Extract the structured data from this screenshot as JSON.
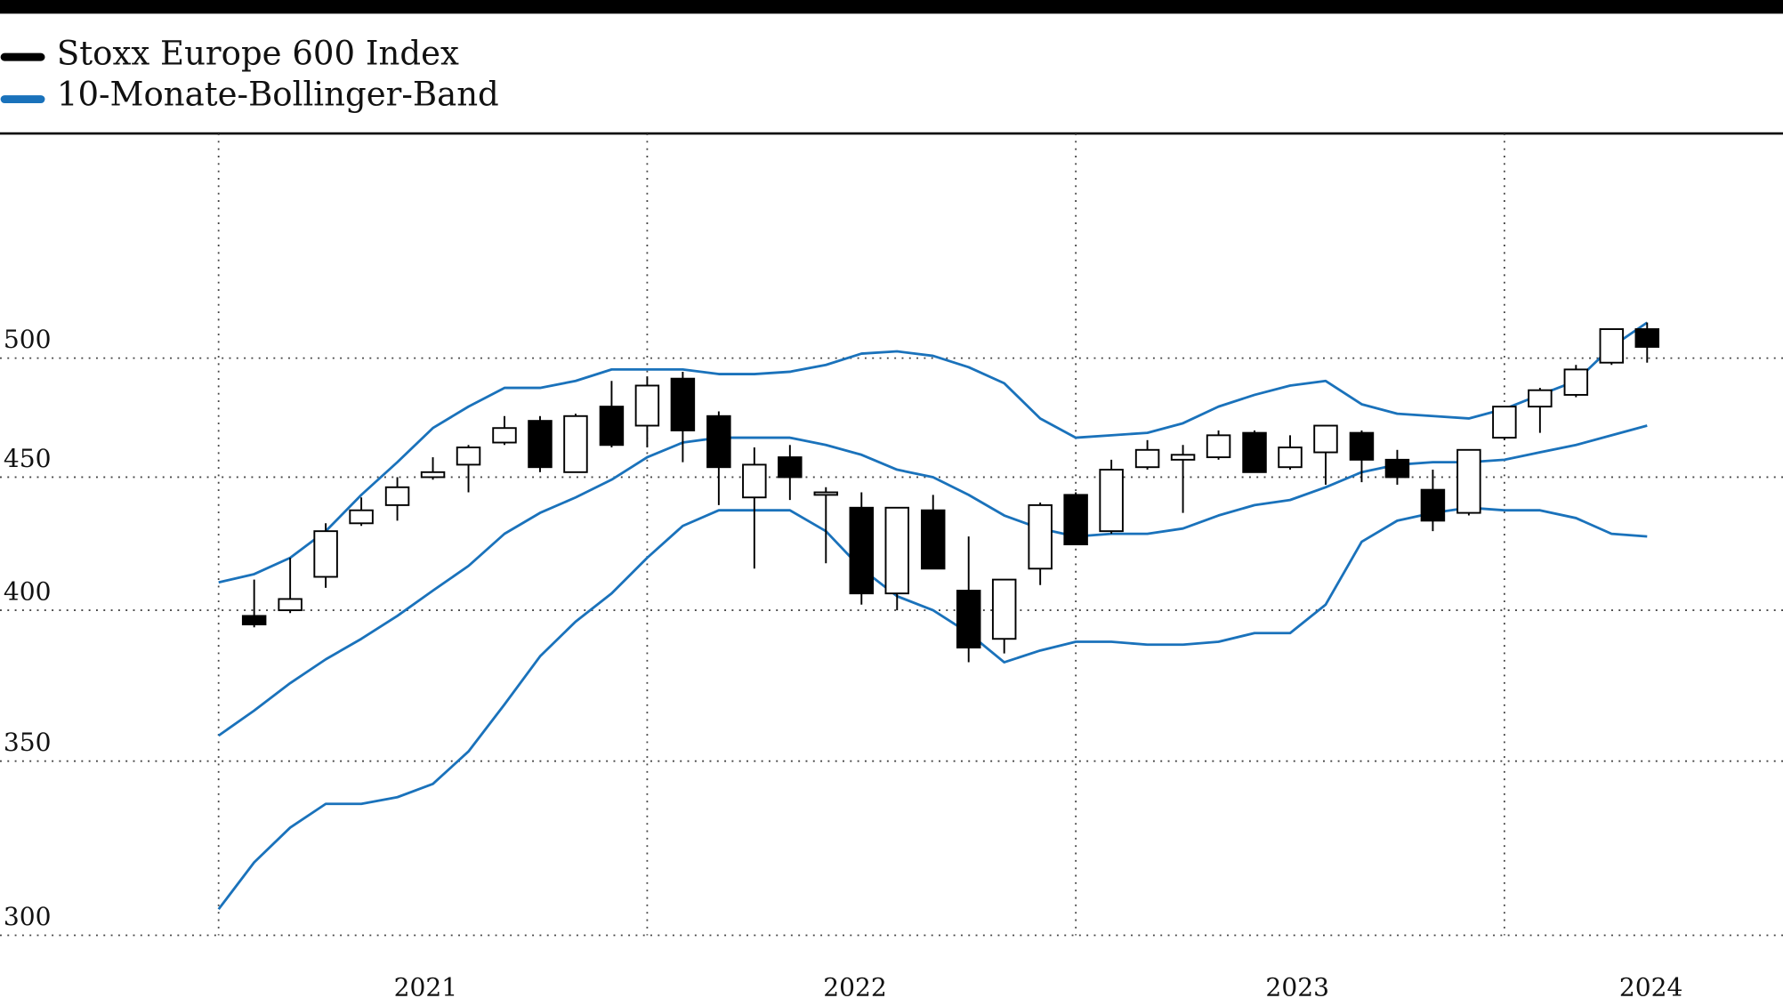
{
  "chart_data": {
    "type": "candlestick",
    "x": [
      2021.0,
      2021.083,
      2021.167,
      2021.25,
      2021.333,
      2021.417,
      2021.5,
      2021.583,
      2021.667,
      2021.75,
      2021.833,
      2021.917,
      2022.0,
      2022.083,
      2022.167,
      2022.25,
      2022.333,
      2022.417,
      2022.5,
      2022.583,
      2022.667,
      2022.75,
      2022.833,
      2022.917,
      2023.0,
      2023.083,
      2023.167,
      2023.25,
      2023.333,
      2023.417,
      2023.5,
      2023.583,
      2023.667,
      2023.75,
      2023.833,
      2023.917,
      2024.0,
      2024.083,
      2024.167,
      2024.25,
      2024.333
    ],
    "series": [
      {
        "name": "Stoxx Europe 600 Index",
        "color": "#000000",
        "up_color": "#ffffff",
        "down_color": "#000000",
        "open": [
          null,
          398,
          400,
          412,
          432,
          439,
          450,
          455,
          464,
          473,
          452,
          479,
          471,
          491,
          475,
          442,
          458,
          443,
          438,
          406,
          437,
          407,
          390,
          415,
          443,
          429,
          454,
          457,
          458,
          468,
          454,
          460,
          468,
          457,
          445,
          436,
          466,
          479,
          484,
          498,
          513
        ],
        "high": [
          null,
          411,
          419,
          432,
          442,
          450,
          458,
          463,
          475,
          475,
          476,
          490,
          492,
          494,
          477,
          462,
          463,
          446,
          444,
          438,
          443,
          427,
          411,
          440,
          444,
          457,
          465,
          463,
          469,
          469,
          467,
          471,
          469,
          461,
          453,
          461,
          479,
          487,
          497,
          513,
          516
        ],
        "low": [
          null,
          394,
          399,
          408,
          431,
          433,
          449,
          444,
          463,
          452,
          452,
          462,
          462,
          456,
          439,
          415,
          441,
          417,
          402,
          400,
          415,
          382,
          385,
          409,
          424,
          428,
          453,
          436,
          457,
          452,
          453,
          447,
          448,
          447,
          429,
          435,
          465,
          468,
          483,
          497,
          498
        ],
        "close": [
          null,
          395,
          404,
          429,
          437,
          446,
          452,
          462,
          470,
          454,
          475,
          463,
          488,
          469,
          454,
          455,
          450,
          444,
          406,
          438,
          415,
          387,
          411,
          439,
          424,
          453,
          461,
          459,
          467,
          452,
          462,
          471,
          457,
          450,
          433,
          461,
          479,
          486,
          495,
          513,
          505
        ]
      },
      {
        "name": "10-Monate-Bollinger-Band",
        "color": "#1a72bb",
        "upper": [
          410,
          413,
          419,
          429,
          443,
          456,
          470,
          479,
          487,
          487,
          490,
          495,
          495,
          495,
          493,
          493,
          494,
          497,
          502,
          503,
          501,
          496,
          489,
          474,
          466,
          467,
          468,
          472,
          479,
          484,
          488,
          490,
          480,
          476,
          475,
          474,
          478,
          484,
          490,
          505,
          516
        ],
        "middle": [
          358,
          366,
          375,
          383,
          390,
          398,
          407,
          416,
          428,
          436,
          442,
          449,
          458,
          464,
          466,
          466,
          466,
          463,
          459,
          453,
          450,
          443,
          435,
          430,
          427,
          428,
          428,
          430,
          435,
          439,
          441,
          446,
          452,
          455,
          456,
          456,
          457,
          460,
          463,
          467,
          471
        ],
        "lower": [
          307,
          320,
          330,
          337,
          337,
          339,
          343,
          353,
          368,
          384,
          396,
          406,
          419,
          431,
          437,
          437,
          437,
          429,
          415,
          405,
          400,
          392,
          382,
          386,
          389,
          389,
          388,
          388,
          389,
          392,
          392,
          402,
          425,
          433,
          436,
          438,
          437,
          437,
          434,
          428,
          427
        ]
      }
    ],
    "y_scale": "log",
    "ylim": [
      300,
      610
    ],
    "yticks": [
      300,
      350,
      400,
      450,
      500
    ],
    "xlim": [
      2020.49,
      2024.65
    ],
    "xgrid": [
      2021,
      2022,
      2023,
      2024
    ],
    "xticks": [
      {
        "value": 2021.483,
        "label": "2021"
      },
      {
        "value": 2022.485,
        "label": "2022"
      },
      {
        "value": 2023.517,
        "label": "2023"
      },
      {
        "value": 2024.342,
        "label": "2024"
      }
    ],
    "grid": true
  }
}
